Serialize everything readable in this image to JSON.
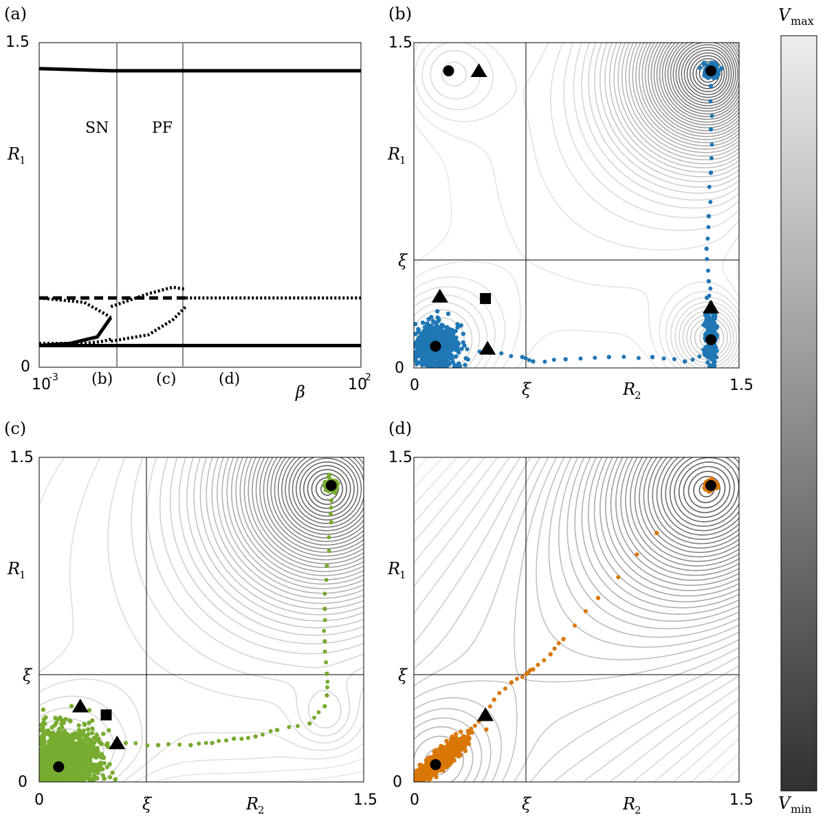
{
  "chart_data": [
    {
      "panel": "(a)",
      "type": "line",
      "xlabel": "β",
      "ylabel": "R1",
      "x_scale": "log",
      "xlim": [
        0.001,
        100
      ],
      "ylim": [
        0,
        1.5
      ],
      "x_ticks": [
        "10-3",
        "102"
      ],
      "y_ticks": [
        "0",
        "1.5"
      ],
      "x_markers": [
        "(b)",
        "(c)",
        "(d)"
      ],
      "vlines": [
        {
          "label": "SN",
          "beta": 0.013
        },
        {
          "label": "PF",
          "beta": 0.19
        }
      ],
      "series": [
        {
          "style": "solid",
          "points": [
            [
              0.001,
              1.38
            ],
            [
              0.013,
              1.37
            ],
            [
              100,
              1.37
            ]
          ]
        },
        {
          "style": "solid",
          "points": [
            [
              0.001,
              0.1
            ],
            [
              100,
              0.1
            ]
          ]
        },
        {
          "style": "solid",
          "points": [
            [
              0.001,
              0.1
            ],
            [
              0.003,
              0.11
            ],
            [
              0.008,
              0.14
            ],
            [
              0.013,
              0.23
            ]
          ]
        },
        {
          "style": "dotted",
          "points": [
            [
              0.001,
              0.32
            ],
            [
              0.005,
              0.3
            ],
            [
              0.01,
              0.25
            ],
            [
              0.013,
              0.23
            ]
          ]
        },
        {
          "style": "dotted",
          "points": [
            [
              0.001,
              0.11
            ],
            [
              0.005,
              0.11
            ],
            [
              0.01,
              0.12
            ],
            [
              0.013,
              0.13
            ]
          ]
        },
        {
          "style": "dashed",
          "points": [
            [
              0.001,
              0.32
            ],
            [
              0.19,
              0.32
            ]
          ]
        },
        {
          "style": "dotted",
          "points": [
            [
              0.19,
              0.32
            ],
            [
              100,
              0.32
            ]
          ]
        },
        {
          "style": "dotted",
          "points": [
            [
              0.013,
              0.28
            ],
            [
              0.05,
              0.34
            ],
            [
              0.12,
              0.37
            ],
            [
              0.19,
              0.36
            ]
          ]
        },
        {
          "style": "dotted",
          "points": [
            [
              0.013,
              0.12
            ],
            [
              0.05,
              0.15
            ],
            [
              0.12,
              0.22
            ],
            [
              0.19,
              0.28
            ]
          ]
        }
      ]
    },
    {
      "panel": "(b)",
      "type": "scatter",
      "xlabel": "R2",
      "ylabel": "R1",
      "xlim": [
        0,
        1.5
      ],
      "ylim": [
        0,
        1.5
      ],
      "x_ticks": [
        "0",
        "ξ",
        "1.5"
      ],
      "y_ticks": [
        "0",
        "ξ",
        "1.5"
      ],
      "xi": 0.5,
      "color": "#1f77b4",
      "stable_points": [
        [
          0.1,
          0.1
        ],
        [
          1.37,
          0.13
        ],
        [
          0.16,
          1.37
        ],
        [
          1.37,
          1.37
        ]
      ],
      "saddle_points": [
        [
          0.12,
          0.33
        ],
        [
          0.34,
          0.09
        ],
        [
          1.37,
          0.28
        ],
        [
          0.3,
          1.37
        ]
      ],
      "unstable_points": [
        [
          0.33,
          0.32
        ]
      ],
      "clusters": [
        {
          "center": [
            0.1,
            0.1
          ],
          "spread": [
            0.05,
            0.05
          ],
          "n": 700
        },
        {
          "center": [
            1.37,
            0.13
          ],
          "spread": [
            0.012,
            0.055
          ],
          "n": 260
        },
        {
          "center": [
            1.37,
            1.37
          ],
          "spread": [
            0.015,
            0.015
          ],
          "n": 200
        }
      ],
      "trails": [
        {
          "points": [
            [
              0.2,
              0.1
            ],
            [
              0.35,
              0.07
            ],
            [
              0.5,
              0.05
            ],
            [
              0.55,
              0.03
            ],
            [
              0.7,
              0.04
            ],
            [
              0.9,
              0.05
            ],
            [
              1.1,
              0.05
            ],
            [
              1.25,
              0.03
            ],
            [
              1.35,
              0.06
            ]
          ]
        },
        {
          "points": [
            [
              1.37,
              0.3
            ],
            [
              1.36,
              0.4
            ],
            [
              1.35,
              0.55
            ],
            [
              1.36,
              0.7
            ],
            [
              1.37,
              0.9
            ],
            [
              1.37,
              1.1
            ],
            [
              1.37,
              1.3
            ]
          ]
        }
      ]
    },
    {
      "panel": "(c)",
      "type": "scatter",
      "xlabel": "R2",
      "ylabel": "R1",
      "xlim": [
        0,
        1.5
      ],
      "ylim": [
        0,
        1.5
      ],
      "x_ticks": [
        "0",
        "ξ",
        "1.5"
      ],
      "y_ticks": [
        "0",
        "ξ",
        "1.5"
      ],
      "xi": 0.5,
      "color": "#77ac30",
      "stable_points": [
        [
          0.09,
          0.07
        ],
        [
          1.35,
          1.37
        ]
      ],
      "saddle_points": [
        [
          0.19,
          0.35
        ],
        [
          0.36,
          0.18
        ]
      ],
      "unstable_points": [
        [
          0.31,
          0.31
        ]
      ],
      "clusters": [
        {
          "center": [
            0.12,
            0.1
          ],
          "spread": [
            0.08,
            0.07
          ],
          "n": 1300
        },
        {
          "center": [
            1.35,
            1.37
          ],
          "spread": [
            0.013,
            0.013
          ],
          "n": 150
        }
      ],
      "trails": [
        {
          "points": [
            [
              0.4,
              0.18
            ],
            [
              0.55,
              0.17
            ],
            [
              0.7,
              0.17
            ],
            [
              0.8,
              0.18
            ],
            [
              0.9,
              0.2
            ],
            [
              1.0,
              0.21
            ],
            [
              1.1,
              0.24
            ],
            [
              1.25,
              0.27
            ],
            [
              1.32,
              0.35
            ]
          ]
        },
        {
          "points": [
            [
              1.33,
              0.4
            ],
            [
              1.33,
              0.5
            ],
            [
              1.32,
              0.65
            ],
            [
              1.32,
              0.8
            ],
            [
              1.33,
              1.0
            ],
            [
              1.35,
              1.2
            ],
            [
              1.35,
              1.3
            ]
          ]
        }
      ]
    },
    {
      "panel": "(d)",
      "type": "scatter",
      "xlabel": "R2",
      "ylabel": "R1",
      "xlim": [
        0,
        1.5
      ],
      "ylim": [
        0,
        1.5
      ],
      "x_ticks": [
        "0",
        "ξ",
        "1.5"
      ],
      "y_ticks": [
        "0",
        "ξ",
        "1.5"
      ],
      "xi": 0.5,
      "color": "#d97706",
      "stable_points": [
        [
          0.1,
          0.08
        ],
        [
          1.37,
          1.37
        ]
      ],
      "saddle_points": [
        [
          0.33,
          0.31
        ]
      ],
      "unstable_points": [],
      "clusters": [
        {
          "center": [
            0.12,
            0.1
          ],
          "spread": [
            0.05,
            0.045
          ],
          "n": 900,
          "corr": 0.85
        },
        {
          "center": [
            1.37,
            1.37
          ],
          "spread": [
            0.012,
            0.012
          ],
          "n": 140
        }
      ],
      "trails": [
        {
          "points": [
            [
              0.25,
              0.23
            ],
            [
              0.3,
              0.28
            ],
            [
              0.37,
              0.38
            ],
            [
              0.45,
              0.46
            ],
            [
              0.52,
              0.5
            ],
            [
              0.55,
              0.52
            ],
            [
              0.63,
              0.59
            ],
            [
              0.69,
              0.66
            ],
            [
              0.85,
              0.85
            ],
            [
              1.12,
              1.15
            ]
          ]
        }
      ]
    }
  ],
  "colorbar": {
    "title": "Vmax",
    "bottom_label": "Vmin",
    "colors": {
      "top": "#ededed",
      "bottom": "#303030"
    }
  },
  "text": {
    "panel_a": "(a)",
    "panel_b": "(b)",
    "panel_c": "(c)",
    "panel_d": "(d)",
    "sn": "SN",
    "pf": "PF",
    "beta": "β",
    "r1": "R",
    "r2": "R",
    "sub1": "1",
    "sub2": "2",
    "xi": "ξ",
    "zero": "0",
    "one_five": "1.5",
    "ten": "10",
    "exp_neg3": "-3",
    "exp_2": "2",
    "mark_b": "(b)",
    "mark_c": "(c)",
    "mark_d": "(d)",
    "v": "V",
    "vmax_sub": "max",
    "vmin_sub": "min"
  }
}
